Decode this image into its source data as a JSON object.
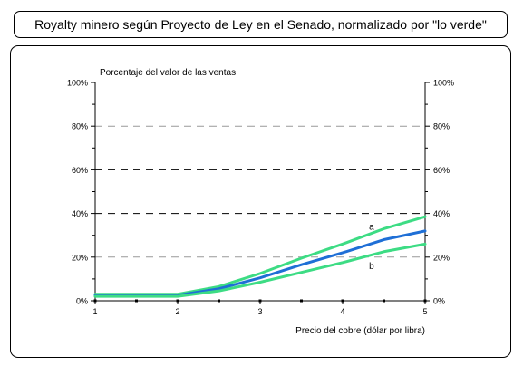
{
  "title": "Royalty minero según Proyecto de Ley en el Senado, normalizado por \"lo verde\"",
  "chart_data": {
    "type": "line",
    "ylabel": "Porcentaje del valor de las ventas",
    "xlabel": "Precio del cobre (dólar por libra)",
    "xlim": [
      1,
      5
    ],
    "ylim": [
      0,
      100
    ],
    "x_ticks": [
      "1",
      "2",
      "3",
      "4",
      "5"
    ],
    "y_ticks": [
      "0%",
      "20%",
      "40%",
      "60%",
      "80%",
      "100%"
    ],
    "grid": "horizontal dashed lines at 20%, 40%, 60%, 80%",
    "series": [
      {
        "name": "a",
        "color": "#3ddc84",
        "x": [
          1,
          2,
          2.5,
          3,
          3.5,
          4,
          4.5,
          5
        ],
        "y": [
          3,
          3,
          6.5,
          12.5,
          19.5,
          26,
          33,
          38.5
        ]
      },
      {
        "name": "",
        "color": "#1f6fd6",
        "x": [
          1,
          2,
          2.5,
          3,
          3.5,
          4,
          4.5,
          5
        ],
        "y": [
          2.5,
          2.5,
          5.5,
          10.5,
          16.5,
          22,
          28,
          32
        ]
      },
      {
        "name": "b",
        "color": "#3ddc84",
        "x": [
          1,
          2,
          2.5,
          3,
          3.5,
          4,
          4.5,
          5
        ],
        "y": [
          2,
          2,
          4.5,
          8.5,
          13,
          17.5,
          22.5,
          26
        ]
      }
    ]
  }
}
